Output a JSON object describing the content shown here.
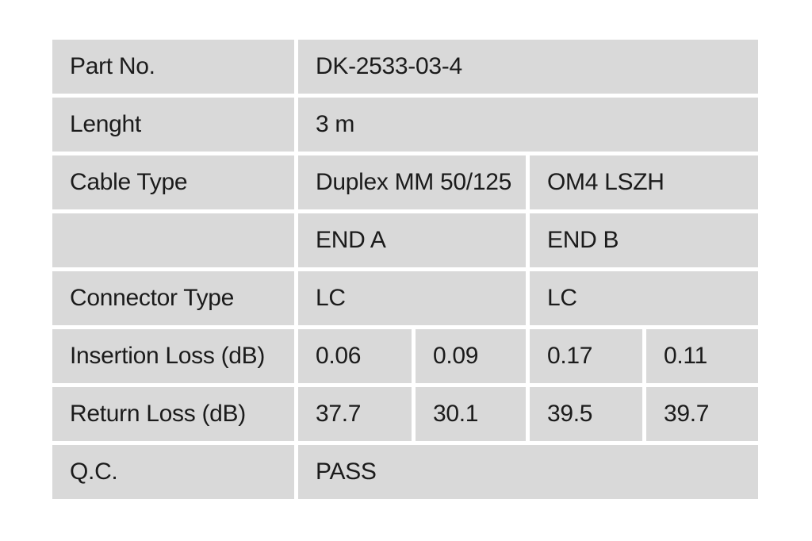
{
  "colors": {
    "page_bg": "#ffffff",
    "cell_bg": "#d9d9d9",
    "text": "#1b1b1b"
  },
  "table": {
    "rows": [
      {
        "label": "Part No.",
        "cells": [
          {
            "text": "DK-2533-03-4"
          }
        ]
      },
      {
        "label": "Lenght",
        "cells": [
          {
            "text": "3 m"
          }
        ]
      },
      {
        "label": "Cable Type",
        "cells": [
          {
            "text": "Duplex MM 50/125"
          },
          {
            "text": "OM4 LSZH"
          }
        ]
      },
      {
        "label": "",
        "cells": [
          {
            "text": "END A"
          },
          {
            "text": "END B"
          }
        ]
      },
      {
        "label": "Connector Type",
        "cells": [
          {
            "text": "LC"
          },
          {
            "text": "LC"
          }
        ]
      },
      {
        "label": "Insertion Loss (dB)",
        "cells": [
          {
            "text": "0.06"
          },
          {
            "text": "0.09"
          },
          {
            "text": "0.17"
          },
          {
            "text": "0.11"
          }
        ]
      },
      {
        "label": "Return Loss (dB)",
        "cells": [
          {
            "text": "37.7"
          },
          {
            "text": "30.1"
          },
          {
            "text": "39.5"
          },
          {
            "text": "39.7"
          }
        ]
      },
      {
        "label": "Q.C.",
        "cells": [
          {
            "text": "PASS"
          }
        ]
      }
    ]
  }
}
